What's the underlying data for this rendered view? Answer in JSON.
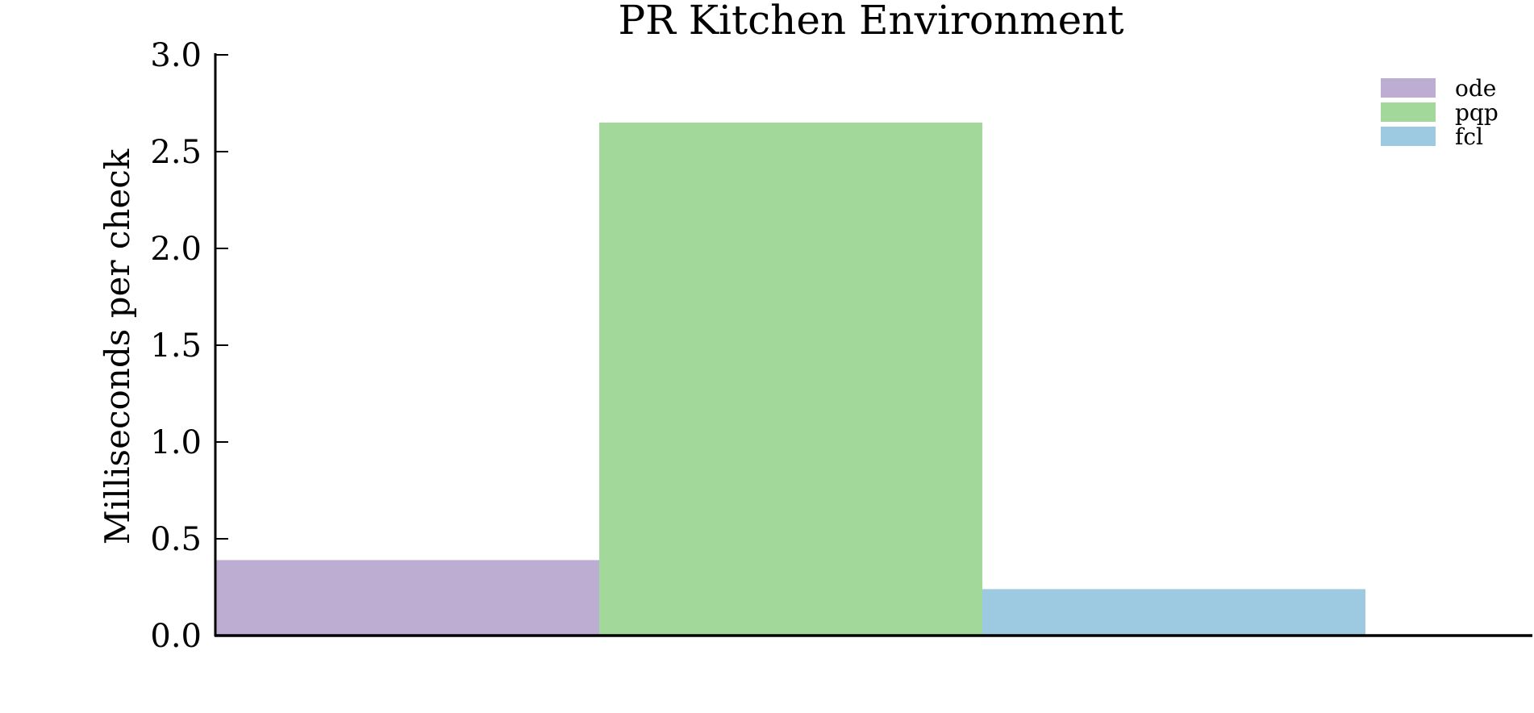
{
  "chart_data": {
    "type": "bar",
    "title": "PR Kitchen Environment",
    "xlabel": "",
    "ylabel": "Milliseconds per check",
    "ylim": [
      0,
      3.0
    ],
    "yticks": [
      "0.0",
      "0.5",
      "1.0",
      "1.5",
      "2.0",
      "2.5",
      "3.0"
    ],
    "grid": false,
    "legend_position": "top-right",
    "series": [
      {
        "name": "ode",
        "value": 0.39,
        "color": "#bdadd3"
      },
      {
        "name": "pqp",
        "value": 2.65,
        "color": "#a2d89a"
      },
      {
        "name": "fcl",
        "value": 0.24,
        "color": "#9ecae1"
      }
    ]
  }
}
